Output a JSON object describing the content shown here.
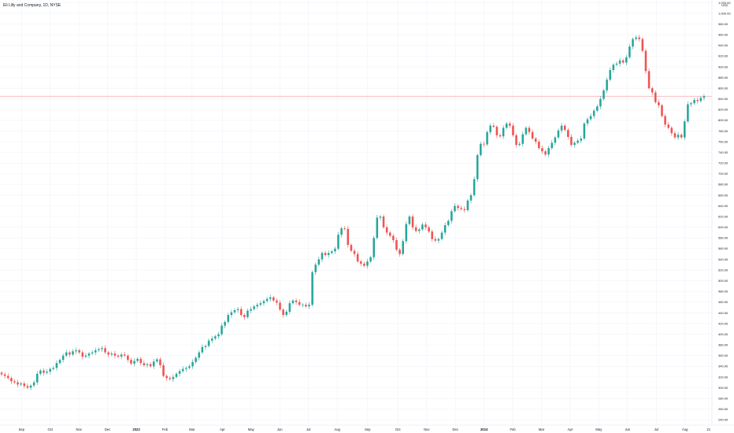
{
  "header": {
    "title": "Eli Lilly and Company, 1D, NYSE"
  },
  "colors": {
    "up": "#26a69a",
    "down": "#ef5350",
    "grid": "#f0f3fa",
    "axis_border": "#e0e3eb",
    "price_line": "#f7a5a5",
    "background": "#ffffff"
  },
  "chart_data": {
    "type": "candlestick",
    "title": "Eli Lilly and Company, 1D, NYSE",
    "ylim": [
      230,
      1025
    ],
    "y_axis_side": "right",
    "grid": true,
    "y_ticks": [
      240,
      260,
      280,
      300,
      320,
      340,
      360,
      380,
      400,
      420,
      440,
      460,
      480,
      500,
      520,
      540,
      560,
      580,
      600,
      620,
      640,
      660,
      680,
      700,
      720,
      740,
      760,
      780,
      800,
      820,
      840,
      860,
      880,
      900,
      920,
      940,
      960,
      980,
      1000,
      1020
    ],
    "y_tick_labels": [
      "240.00",
      "260.00",
      "280.00",
      "300.00",
      "320.00",
      "340.00",
      "360.00",
      "380.00",
      "400.00",
      "420.00",
      "440.00",
      "460.00",
      "480.00",
      "500.00",
      "520.00",
      "540.00",
      "560.00",
      "580.00",
      "600.00",
      "620.00",
      "640.00",
      "660.00",
      "680.00",
      "700.00",
      "720.00",
      "740.00",
      "760.00",
      "780.00",
      "800.00",
      "820.00",
      "840.00",
      "860.00",
      "880.00",
      "900.00",
      "920.00",
      "940.00",
      "960.00",
      "980.00",
      "1,000.00",
      "1,020.00"
    ],
    "top_y_label": "USD",
    "x_range": [
      0,
      103
    ],
    "x_ticks": [
      {
        "label": "Sep",
        "pos": 4.5,
        "bold": false
      },
      {
        "label": "Oct",
        "pos": 13,
        "bold": false
      },
      {
        "label": "Nov",
        "pos": 21.5,
        "bold": false
      },
      {
        "label": "Dec",
        "pos": 30,
        "bold": false
      },
      {
        "label": "2023",
        "pos": 38.5,
        "bold": true
      },
      {
        "label": "Feb",
        "pos": 47,
        "bold": false
      },
      {
        "label": "Mar",
        "pos": 55,
        "bold": false
      },
      {
        "label": "Apr",
        "pos": 64,
        "bold": false
      },
      {
        "label": "May",
        "pos": 72.5,
        "bold": false
      },
      {
        "label": "Jun",
        "pos": 81,
        "bold": false
      },
      {
        "label": "Jul",
        "pos": 89.5,
        "bold": false
      },
      {
        "label": "Aug",
        "pos": 98,
        "bold": false
      }
    ],
    "x_ticks_right": [
      {
        "label": "Sep",
        "pos": 107
      },
      {
        "label": "Oct",
        "pos": 116
      },
      {
        "label": "Nov",
        "pos": 124.5
      },
      {
        "label": "Dec",
        "pos": 133
      },
      {
        "label": "2024",
        "pos": 141.5,
        "bold": true
      },
      {
        "label": "Feb",
        "pos": 150
      },
      {
        "label": "Mar",
        "pos": 158.5
      },
      {
        "label": "Apr",
        "pos": 167
      },
      {
        "label": "May",
        "pos": 175.5
      },
      {
        "label": "Jun",
        "pos": 184
      },
      {
        "label": "Jul",
        "pos": 192.5
      },
      {
        "label": "Aug",
        "pos": 201
      },
      {
        "label": "21",
        "pos": 208
      }
    ],
    "current_price_line": 845,
    "closes": [
      325,
      322,
      318,
      312,
      310,
      306,
      308,
      303,
      300,
      304,
      310,
      326,
      332,
      328,
      330,
      335,
      337,
      346,
      352,
      360,
      366,
      362,
      368,
      370,
      366,
      358,
      360,
      364,
      366,
      370,
      372,
      374,
      366,
      362,
      364,
      360,
      358,
      362,
      360,
      352,
      345,
      350,
      354,
      346,
      342,
      344,
      340,
      349,
      353,
      342,
      322,
      318,
      316,
      320,
      326,
      331,
      335,
      337,
      340,
      348,
      356,
      366,
      376,
      378,
      388,
      392,
      396,
      400,
      416,
      423,
      436,
      441,
      445,
      447,
      436,
      432,
      444,
      447,
      452,
      455,
      458,
      462,
      466,
      469,
      463,
      459,
      446,
      436,
      442,
      458,
      463,
      460,
      455,
      455,
      452,
      455,
      516,
      530,
      540,
      552,
      548,
      552,
      555,
      560,
      586,
      598,
      597,
      567,
      556,
      550,
      536,
      532,
      528,
      536,
      544,
      580,
      618,
      620,
      600,
      590,
      584,
      576,
      558,
      550,
      574,
      606,
      620,
      600,
      593,
      596,
      605,
      600,
      592,
      578,
      575,
      578,
      590,
      604,
      612,
      630,
      640,
      636,
      634,
      632,
      650,
      660,
      690,
      735,
      756,
      755,
      778,
      790,
      788,
      772,
      770,
      786,
      794,
      790,
      772,
      754,
      756,
      774,
      786,
      778,
      766,
      760,
      748,
      742,
      736,
      748,
      758,
      768,
      781,
      790,
      782,
      769,
      754,
      758,
      762,
      766,
      794,
      802,
      808,
      818,
      826,
      840,
      856,
      876,
      894,
      904,
      906,
      912,
      908,
      918,
      938,
      952,
      955,
      952,
      930,
      892,
      860,
      852,
      834,
      828,
      808,
      792,
      786,
      776,
      768,
      773,
      768,
      798,
      830,
      832,
      838,
      836,
      842,
      845
    ]
  }
}
